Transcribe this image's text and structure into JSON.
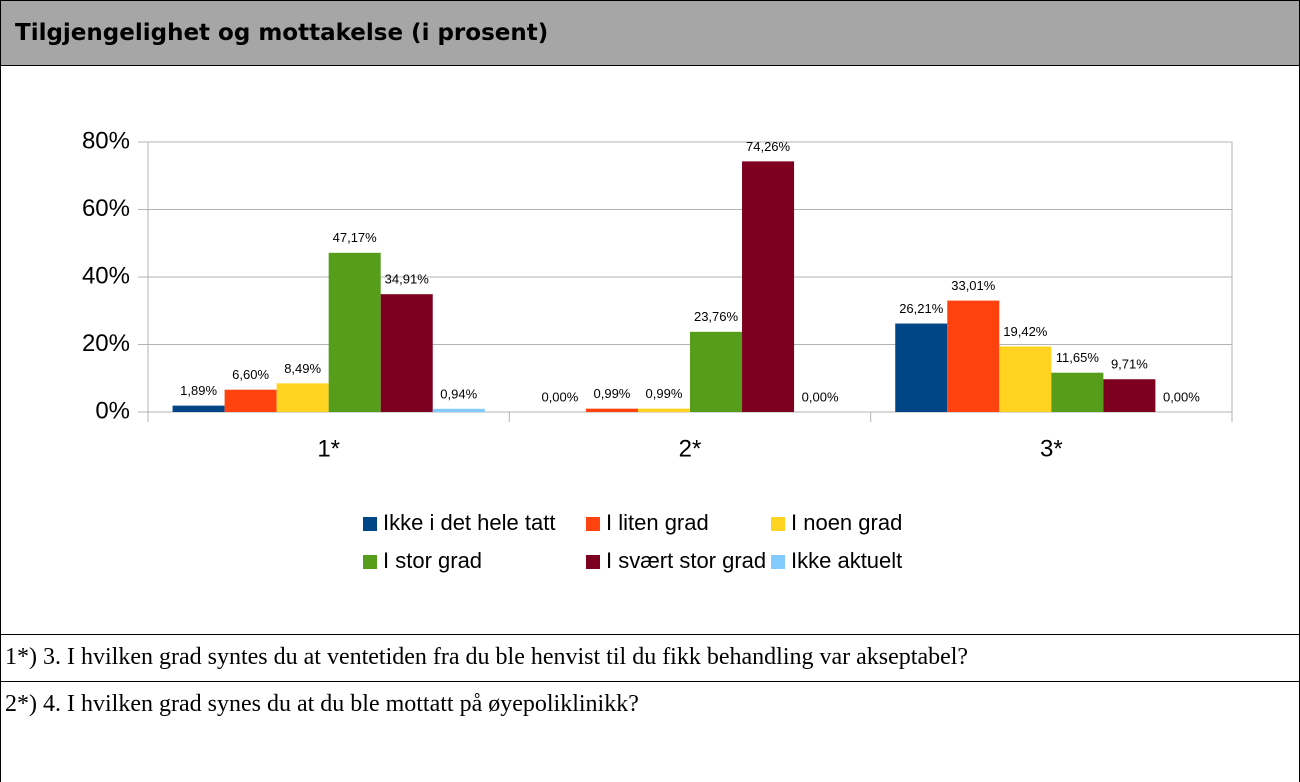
{
  "header": {
    "title": "Tilgjengelighet og mottakelse (i prosent)"
  },
  "chart_data": {
    "type": "bar",
    "categories": [
      "1*",
      "2*",
      "3*"
    ],
    "ylim": [
      0,
      80
    ],
    "yticks": [
      {
        "value": 0,
        "label": "0%"
      },
      {
        "value": 20,
        "label": "20%"
      },
      {
        "value": 40,
        "label": "40%"
      },
      {
        "value": 60,
        "label": "60%"
      },
      {
        "value": 80,
        "label": "80%"
      }
    ],
    "grid": true,
    "legend": "bottom",
    "series": [
      {
        "name": "Ikke i det hele tatt",
        "color": "#004586",
        "values": [
          1.89,
          0,
          26.21
        ],
        "value_labels": [
          "1,89%",
          "0,00%",
          "26,21%"
        ]
      },
      {
        "name": "I liten grad",
        "color": "#ff420e",
        "values": [
          6.6,
          0.99,
          33.01
        ],
        "value_labels": [
          "6,60%",
          "0,99%",
          "33,01%"
        ]
      },
      {
        "name": "I noen grad",
        "color": "#ffd320",
        "values": [
          8.49,
          0.99,
          19.42
        ],
        "value_labels": [
          "8,49%",
          "0,99%",
          "19,42%"
        ]
      },
      {
        "name": "I stor grad",
        "color": "#579d1c",
        "values": [
          47.17,
          23.76,
          11.65
        ],
        "value_labels": [
          "47,17%",
          "23,76%",
          "11,65%"
        ]
      },
      {
        "name": "I svært stor grad",
        "color": "#7e0021",
        "values": [
          34.91,
          74.26,
          9.71
        ],
        "value_labels": [
          "34,91%",
          "74,26%",
          "9,71%"
        ]
      },
      {
        "name": "Ikke aktuelt",
        "color": "#83caff",
        "values": [
          0.94,
          0,
          0
        ],
        "value_labels": [
          "0,94%",
          "0,00%",
          "0,00%"
        ]
      }
    ]
  },
  "notes": [
    "1*) 3. I hvilken grad syntes du at ventetiden fra du ble henvist til du fikk behandling var akseptabel?",
    "2*) 4. I hvilken grad synes du at du ble mottatt på øyepoliklinikk?"
  ]
}
